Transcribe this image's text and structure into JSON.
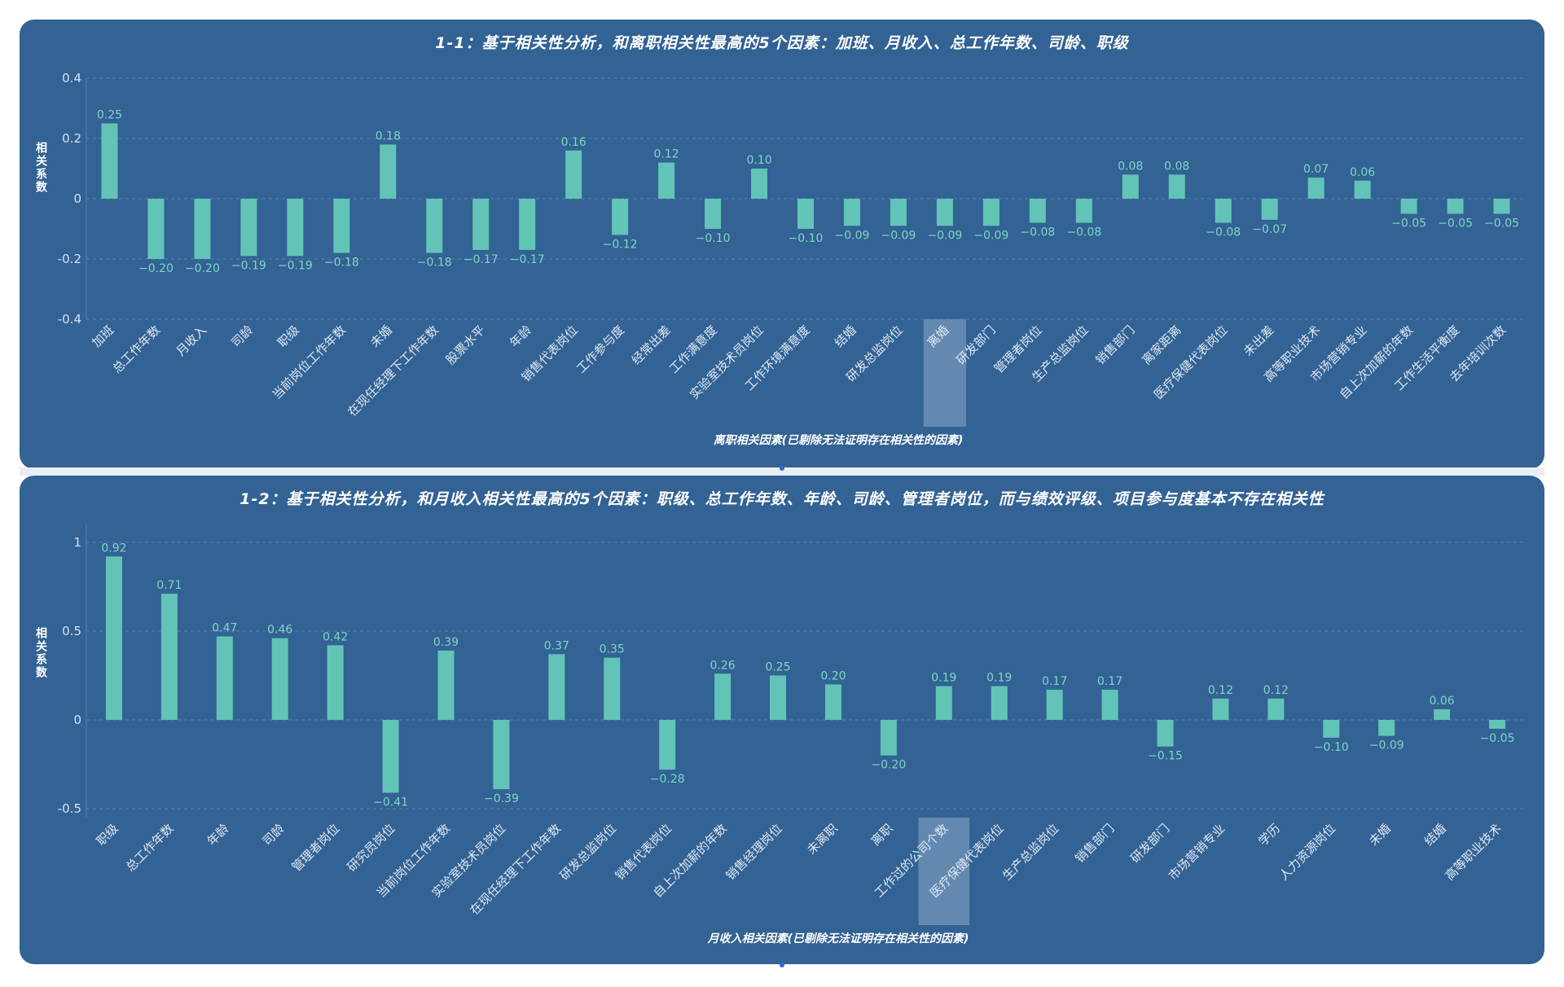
{
  "colors": {
    "panel": "#336294",
    "bar": "#62c4b6",
    "label": "#7fd6c4",
    "grid": "#5a82ad",
    "highlight": "#8ba9c9"
  },
  "chart_data": [
    {
      "type": "bar",
      "title": "1-1：基于相关性分析，和离职相关性最高的5个因素：加班、月收入、总工作年数、司龄、职级",
      "xlabel": "离职相关因素(已剔除无法证明存在相关性的因素)",
      "ylabel": "相关系数",
      "ylim": [
        -0.4,
        0.4
      ],
      "yticks": [
        -0.4,
        -0.2,
        0,
        0.2,
        0.4
      ],
      "ytick_labels": [
        "-0.4",
        "-0.2",
        "0",
        "0.2",
        "0.4"
      ],
      "highlight_category": "离婚",
      "categories": [
        "加班",
        "总工作年数",
        "月收入",
        "司龄",
        "职级",
        "当前岗位工作年数",
        "未婚",
        "在现任经理下工作年数",
        "股票水平",
        "年龄",
        "销售代表岗位",
        "工作参与度",
        "经常出差",
        "工作满意度",
        "实验室技术员岗位",
        "工作环境满意度",
        "结婚",
        "研发总监岗位",
        "离婚",
        "研发部门",
        "管理者岗位",
        "生产总监岗位",
        "销售部门",
        "离家距离",
        "医疗保健代表岗位",
        "未出差",
        "高等职业技术",
        "市场营销专业",
        "自上次加薪的年数",
        "工作生活平衡度",
        "去年培训次数"
      ],
      "values": [
        0.25,
        -0.2,
        -0.2,
        -0.19,
        -0.19,
        -0.18,
        0.18,
        -0.18,
        -0.17,
        -0.17,
        0.16,
        -0.12,
        0.12,
        -0.1,
        0.1,
        -0.1,
        -0.09,
        -0.09,
        -0.09,
        -0.09,
        -0.08,
        -0.08,
        0.08,
        0.08,
        -0.08,
        -0.07,
        0.07,
        0.06,
        -0.05,
        -0.05,
        -0.05
      ],
      "value_labels": [
        "0.25",
        "−0.20",
        "−0.20",
        "−0.19",
        "−0.19",
        "−0.18",
        "0.18",
        "−0.18",
        "−0.17",
        "−0.17",
        "0.16",
        "−0.12",
        "0.12",
        "−0.10",
        "0.10",
        "−0.10",
        "−0.09",
        "−0.09",
        "−0.09",
        "−0.09",
        "−0.08",
        "−0.08",
        "0.08",
        "0.08",
        "−0.08",
        "−0.07",
        "0.07",
        "0.06",
        "−0.05",
        "−0.05",
        "−0.05"
      ]
    },
    {
      "type": "bar",
      "title": "1-2：基于相关性分析，和月收入相关性最高的5个因素：职级、总工作年数、年龄、司龄、管理者岗位，而与绩效评级、项目参与度基本不存在相关性",
      "xlabel": "月收入相关因素(已剔除无法证明存在相关性的因素)",
      "ylabel": "相关系数",
      "ylim": [
        -0.55,
        1.1
      ],
      "yticks": [
        -0.5,
        0,
        0.5,
        1
      ],
      "ytick_labels": [
        "-0.5",
        "0",
        "0.5",
        "1"
      ],
      "highlight_category": "工作过的公司个数",
      "categories": [
        "职级",
        "总工作年数",
        "年龄",
        "司龄",
        "管理者岗位",
        "研究员岗位",
        "当前岗位工作年数",
        "实验室技术员岗位",
        "在现任经理下工作年数",
        "研发总监岗位",
        "销售代表岗位",
        "自上次加薪的年数",
        "销售经理岗位",
        "未离职",
        "离职",
        "工作过的公司个数",
        "医疗保健代表岗位",
        "生产总监岗位",
        "销售部门",
        "研发部门",
        "市场营销专业",
        "学历",
        "人力资源岗位",
        "未婚",
        "结婚",
        "高等职业技术"
      ],
      "values": [
        0.92,
        0.71,
        0.47,
        0.46,
        0.42,
        -0.41,
        0.39,
        -0.39,
        0.37,
        0.35,
        -0.28,
        0.26,
        0.25,
        0.2,
        -0.2,
        0.19,
        0.19,
        0.17,
        0.17,
        -0.15,
        0.12,
        0.12,
        -0.1,
        -0.09,
        0.06,
        -0.05
      ],
      "value_labels": [
        "0.92",
        "0.71",
        "0.47",
        "0.46",
        "0.42",
        "−0.41",
        "0.39",
        "−0.39",
        "0.37",
        "0.35",
        "−0.28",
        "0.26",
        "0.25",
        "0.20",
        "−0.20",
        "0.19",
        "0.19",
        "0.17",
        "0.17",
        "−0.15",
        "0.12",
        "0.12",
        "−0.10",
        "−0.09",
        "0.06",
        "−0.05"
      ]
    }
  ]
}
